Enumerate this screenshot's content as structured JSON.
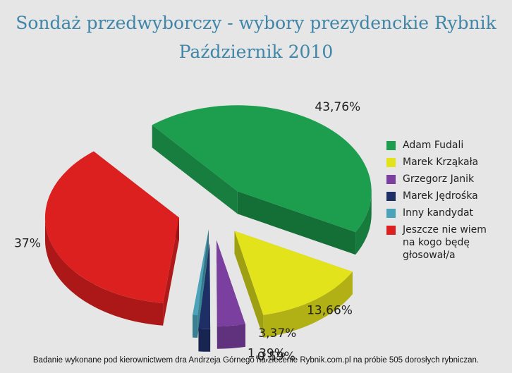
{
  "chart_data": {
    "type": "pie",
    "title": "Sondaż przedwyborczy - wybory prezydenckie Rybnik",
    "subtitle": "Październik 2010",
    "legend_position": "right",
    "series": [
      {
        "name": "Adam Fudali",
        "value": 43.76,
        "label": "43,76%",
        "color": "#1d9e4f"
      },
      {
        "name": "Marek Krząkała",
        "value": 13.66,
        "label": "13,66%",
        "color": "#e3e31c"
      },
      {
        "name": "Grzegorz Janik",
        "value": 3.37,
        "label": "3,37%",
        "color": "#7b3fa0"
      },
      {
        "name": "Marek Jędrośka",
        "value": 1.39,
        "label": "1,39%",
        "color": "#1e2f66"
      },
      {
        "name": "Inny kandydat",
        "value": 0.59,
        "label": "0,59%",
        "color": "#4aa3b8"
      },
      {
        "name": "Jeszcze nie wiem na kogo będę głosował/a",
        "value": 37,
        "label": "37%",
        "color": "#dc1f1f"
      }
    ]
  },
  "footer": "Badanie wykonane pod kierownictwem dra Andrzeja Górnego na zlecenie Rybnik.com.pl na próbie 505 dorosłych rybniczan."
}
